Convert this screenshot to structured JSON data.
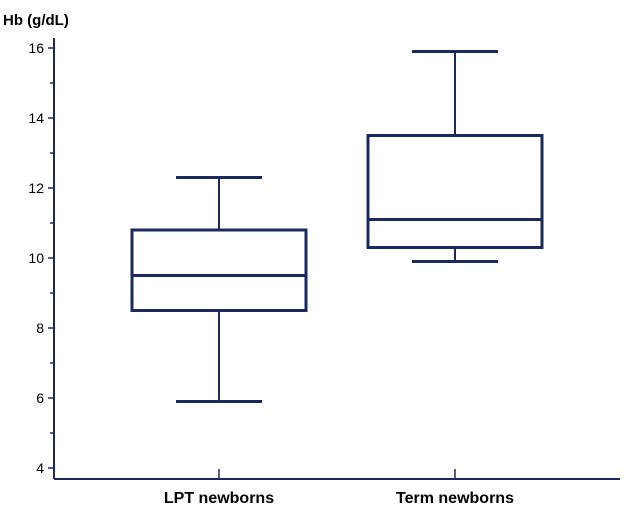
{
  "chart_data": {
    "type": "boxplot",
    "title": "",
    "xlabel": "",
    "ylabel": "Hb (g/dL)",
    "ylim": [
      4,
      16
    ],
    "major_ticks": [
      4,
      6,
      8,
      10,
      12,
      14,
      16
    ],
    "minor_tick_step": 1,
    "grid": false,
    "colors": {
      "box": "#1b2a5e",
      "axis": "#1b2a5e",
      "text": "#000000"
    },
    "categories": [
      "LPT newborns",
      "Term newborns"
    ],
    "boxes": [
      {
        "category": "LPT newborns",
        "whisker_low": 5.9,
        "q1": 8.5,
        "median": 9.5,
        "q3": 10.8,
        "whisker_high": 12.3
      },
      {
        "category": "Term newborns",
        "whisker_low": 9.9,
        "q1": 10.3,
        "median": 11.1,
        "q3": 13.5,
        "whisker_high": 15.9
      }
    ]
  }
}
